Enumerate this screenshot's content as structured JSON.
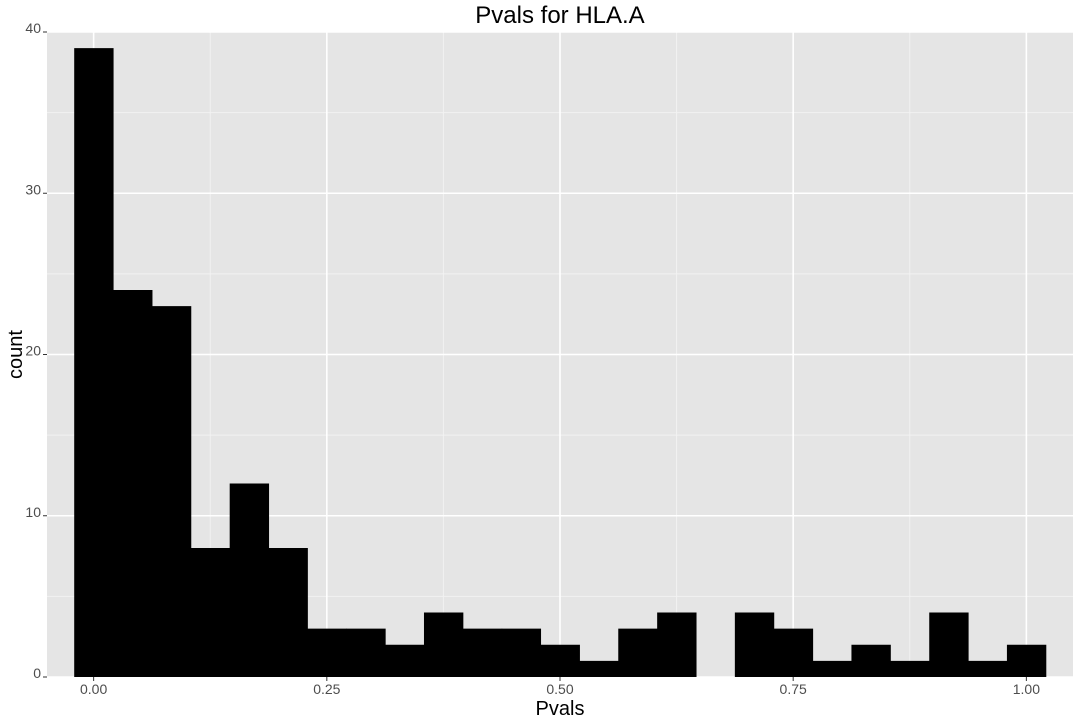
{
  "chart_data": {
    "type": "bar",
    "title": "Pvals for HLA.A",
    "xlabel": "Pvals",
    "ylabel": "count",
    "bin_width": 0.04167,
    "bins": [
      {
        "x": 0.0,
        "count": 39
      },
      {
        "x": 0.0417,
        "count": 24
      },
      {
        "x": 0.0833,
        "count": 23
      },
      {
        "x": 0.125,
        "count": 8
      },
      {
        "x": 0.1667,
        "count": 12
      },
      {
        "x": 0.2083,
        "count": 8
      },
      {
        "x": 0.25,
        "count": 3
      },
      {
        "x": 0.2917,
        "count": 3
      },
      {
        "x": 0.3333,
        "count": 2
      },
      {
        "x": 0.375,
        "count": 4
      },
      {
        "x": 0.4167,
        "count": 3
      },
      {
        "x": 0.4583,
        "count": 3
      },
      {
        "x": 0.5,
        "count": 2
      },
      {
        "x": 0.5417,
        "count": 1
      },
      {
        "x": 0.5833,
        "count": 3
      },
      {
        "x": 0.625,
        "count": 4
      },
      {
        "x": 0.6667,
        "count": 0
      },
      {
        "x": 0.7083,
        "count": 4
      },
      {
        "x": 0.75,
        "count": 3
      },
      {
        "x": 0.7917,
        "count": 1
      },
      {
        "x": 0.8333,
        "count": 2
      },
      {
        "x": 0.875,
        "count": 1
      },
      {
        "x": 0.9167,
        "count": 4
      },
      {
        "x": 0.9583,
        "count": 1
      },
      {
        "x": 1.0,
        "count": 2
      }
    ],
    "xlim": [
      -0.05,
      1.05
    ],
    "ylim": [
      0,
      40
    ],
    "x_ticks": [
      "0.00",
      "0.25",
      "0.50",
      "0.75",
      "1.00"
    ],
    "y_ticks": [
      "0",
      "10",
      "20",
      "30",
      "40"
    ],
    "grid": true,
    "colors": {
      "panel_background": "#e5e5e5",
      "grid_major": "#ffffff",
      "grid_minor": "#f2f2f2",
      "bar_fill": "#000000",
      "tick_text": "#4d4d4d"
    }
  }
}
